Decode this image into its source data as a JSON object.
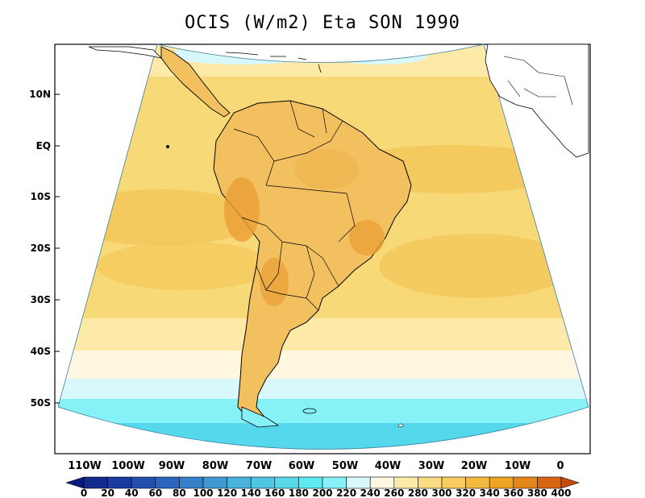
{
  "title": "OCIS (W/m2) Eta SON 1990",
  "y_axis_labels": [
    "10N",
    "EQ",
    "10S",
    "20S",
    "30S",
    "40S",
    "50S"
  ],
  "x_axis_labels": [
    "110W",
    "100W",
    "90W",
    "80W",
    "70W",
    "60W",
    "50W",
    "40W",
    "30W",
    "20W",
    "10W",
    "0"
  ],
  "colorbar": {
    "labels": [
      "0",
      "20",
      "40",
      "60",
      "80",
      "100",
      "120",
      "140",
      "160",
      "180",
      "200",
      "220",
      "240",
      "260",
      "280",
      "300",
      "320",
      "340",
      "360",
      "380",
      "400"
    ],
    "colors": [
      "#0a1a7c",
      "#12298e",
      "#1a3aa0",
      "#2150b0",
      "#2a66be",
      "#3580c8",
      "#3f9ad2",
      "#48b2db",
      "#4fc6e4",
      "#55d8ec",
      "#5ee9f3",
      "#86f2f8",
      "#d9f8fb",
      "#fff7e0",
      "#fdeaa8",
      "#fbdc82",
      "#f8cc5f",
      "#f3b93f",
      "#eea325",
      "#e5861a",
      "#d8650f",
      "#c84a08"
    ]
  }
}
